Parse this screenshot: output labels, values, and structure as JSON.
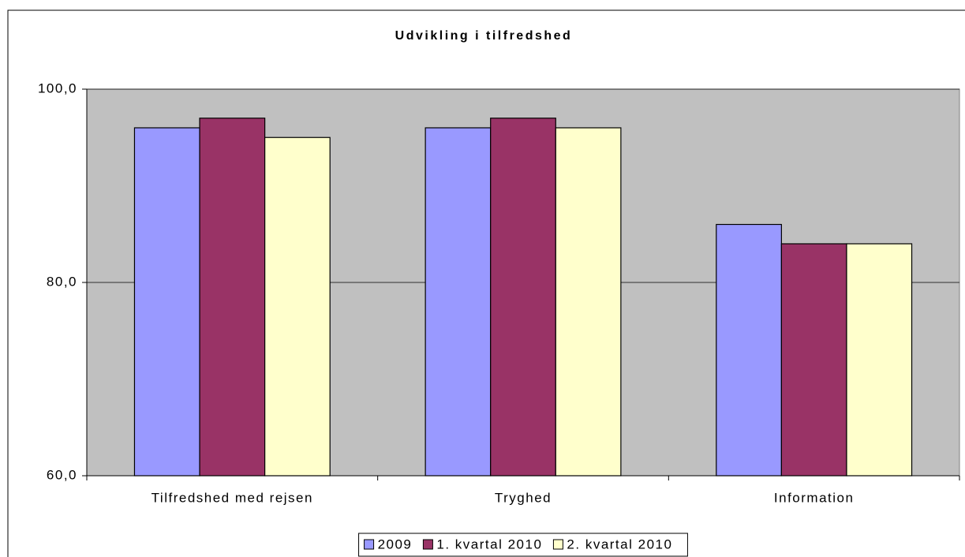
{
  "chart_data": {
    "type": "bar",
    "title": "Udvikling i tilfredshed",
    "categories": [
      "Tilfredshed med rejsen",
      "Tryghed",
      "Information"
    ],
    "series": [
      {
        "name": "2009",
        "color": "#9999ff",
        "values": [
          96,
          96,
          86
        ]
      },
      {
        "name": "1. kvartal 2010",
        "color": "#993366",
        "values": [
          97,
          97,
          84
        ]
      },
      {
        "name": "2. kvartal 2010",
        "color": "#ffffcc",
        "values": [
          95,
          96,
          84
        ]
      }
    ],
    "ylim": [
      60,
      100
    ],
    "yticks": [
      {
        "value": 60,
        "label": "60,0"
      },
      {
        "value": 80,
        "label": "80,0"
      },
      {
        "value": 100,
        "label": "100,0"
      }
    ],
    "grid": true,
    "legend": "bottom",
    "background": "#c0c0c0"
  }
}
